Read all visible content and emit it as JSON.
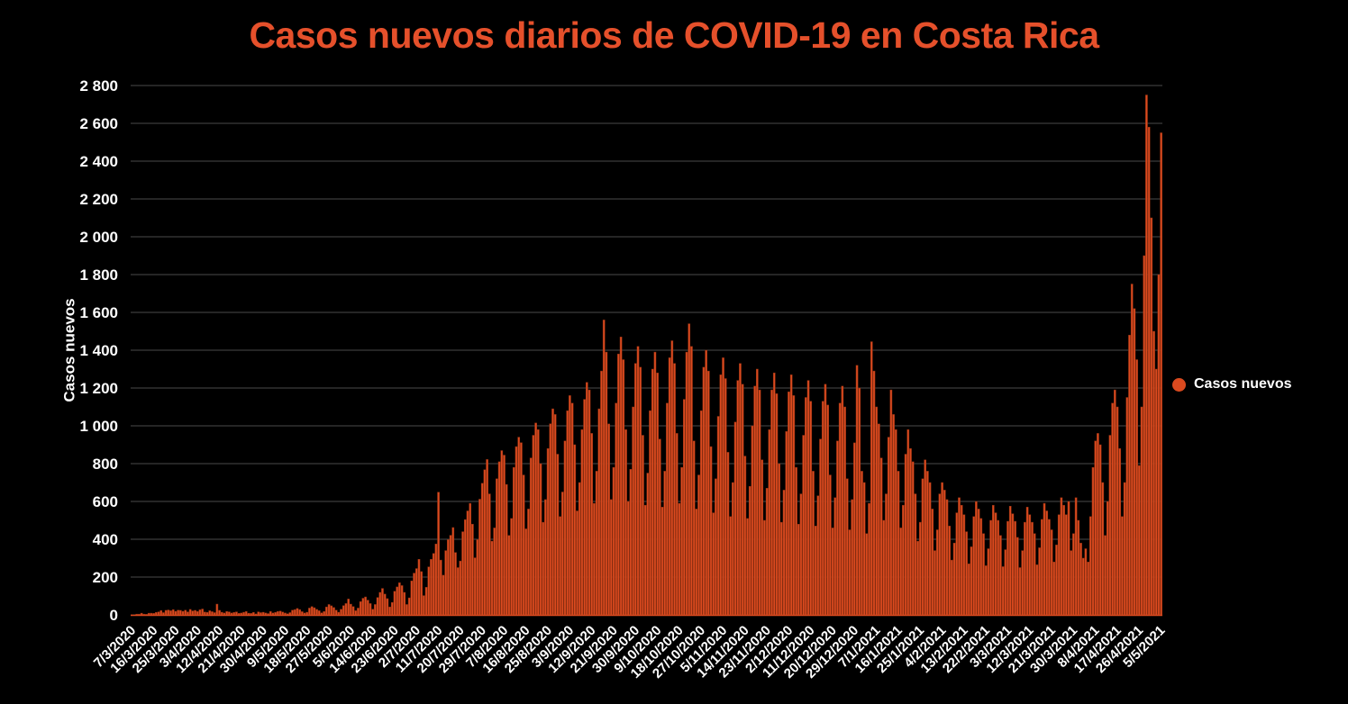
{
  "title": "Casos nuevos diarios de COVID-19 en Costa Rica",
  "legend": {
    "label": "Casos nuevos"
  },
  "chart_data": {
    "type": "bar",
    "title": "Casos nuevos diarios de COVID-19 en Costa Rica",
    "xlabel": "",
    "ylabel": "Casos nuevos",
    "series_name": "Casos nuevos",
    "ylim": [
      0,
      2800
    ],
    "ytick_step": 200,
    "grid": true,
    "legend_position": "right-middle",
    "x_tick_every": 9,
    "colors": {
      "background": "#000000",
      "bar": "#DB4A1F",
      "bar_edge": "#8E3012",
      "title": "#E5502B",
      "grid": "#4A4A4A",
      "text": "#FFFFFF"
    },
    "y_tick_labels": [
      "0",
      "200",
      "400",
      "600",
      "800",
      "1 000",
      "1 200",
      "1 400",
      "1 600",
      "1 800",
      "2 000",
      "2 200",
      "2 400",
      "2 600",
      "2 800"
    ],
    "x_tick_labels": [
      "7/3/2020",
      "16/3/2020",
      "25/3/2020",
      "3/4/2020",
      "12/4/2020",
      "21/4/2020",
      "30/4/2020",
      "9/5/2020",
      "18/5/2020",
      "27/5/2020",
      "5/6/2020",
      "14/6/2020",
      "23/6/2020",
      "2/7/2020",
      "11/7/2020",
      "20/7/2020",
      "29/7/2020",
      "7/8/2020",
      "16/8/2020",
      "25/8/2020",
      "3/9/2020",
      "12/9/2020",
      "21/9/2020",
      "30/9/2020",
      "9/10/2020",
      "18/10/2020",
      "27/10/2020",
      "5/11/2020",
      "14/11/2020",
      "23/11/2020",
      "2/12/2020",
      "11/12/2020",
      "20/12/2020",
      "29/12/2020",
      "7/1/2021",
      "16/1/2021",
      "25/1/2021",
      "4/2/2021",
      "13/2/2021",
      "22/2/2021",
      "3/3/2021",
      "12/3/2021",
      "21/3/2021",
      "30/3/2021",
      "8/4/2021",
      "17/4/2021",
      "26/4/2021",
      "5/5/2021"
    ],
    "values": [
      1,
      0,
      4,
      4,
      9,
      4,
      3,
      9,
      9,
      8,
      13,
      16,
      23,
      12,
      24,
      26,
      22,
      28,
      19,
      25,
      24,
      19,
      25,
      16,
      29,
      21,
      24,
      18,
      27,
      31,
      15,
      13,
      22,
      17,
      12,
      57,
      24,
      14,
      10,
      18,
      16,
      10,
      13,
      16,
      8,
      10,
      14,
      18,
      9,
      8,
      13,
      5,
      16,
      12,
      14,
      10,
      7,
      18,
      10,
      13,
      18,
      20,
      15,
      10,
      6,
      12,
      25,
      28,
      34,
      28,
      17,
      10,
      14,
      36,
      44,
      38,
      29,
      22,
      11,
      18,
      42,
      55,
      48,
      39,
      25,
      14,
      30,
      49,
      60,
      84,
      57,
      44,
      22,
      36,
      70,
      88,
      95,
      78,
      60,
      30,
      55,
      92,
      119,
      140,
      110,
      86,
      42,
      66,
      125,
      148,
      170,
      155,
      119,
      55,
      90,
      180,
      221,
      245,
      294,
      229,
      102,
      146,
      254,
      294,
      325,
      375,
      649,
      290,
      210,
      340,
      398,
      421,
      462,
      330,
      250,
      285,
      440,
      504,
      550,
      590,
      480,
      302,
      398,
      612,
      696,
      768,
      822,
      640,
      390,
      460,
      720,
      810,
      869,
      845,
      690,
      420,
      510,
      780,
      890,
      940,
      911,
      740,
      455,
      560,
      830,
      950,
      1015,
      980,
      800,
      490,
      610,
      880,
      1011,
      1090,
      1060,
      850,
      520,
      650,
      920,
      1080,
      1160,
      1120,
      900,
      550,
      700,
      980,
      1140,
      1230,
      1190,
      960,
      590,
      760,
      1090,
      1290,
      1560,
      1390,
      1010,
      610,
      780,
      1120,
      1380,
      1470,
      1350,
      980,
      600,
      770,
      1100,
      1330,
      1420,
      1310,
      950,
      580,
      750,
      1080,
      1300,
      1390,
      1280,
      930,
      570,
      760,
      1120,
      1360,
      1450,
      1330,
      960,
      590,
      780,
      1140,
      1390,
      1540,
      1420,
      920,
      560,
      740,
      1080,
      1310,
      1400,
      1290,
      890,
      540,
      720,
      1050,
      1270,
      1360,
      1250,
      860,
      520,
      700,
      1020,
      1240,
      1330,
      1220,
      840,
      510,
      680,
      1000,
      1210,
      1300,
      1190,
      820,
      500,
      670,
      980,
      1190,
      1280,
      1170,
      800,
      490,
      660,
      970,
      1180,
      1270,
      1160,
      780,
      480,
      640,
      950,
      1150,
      1240,
      1130,
      760,
      470,
      630,
      930,
      1130,
      1220,
      1110,
      740,
      460,
      620,
      920,
      1120,
      1210,
      1100,
      720,
      450,
      610,
      910,
      1320,
      1200,
      760,
      700,
      430,
      590,
      1445,
      1290,
      1100,
      1010,
      830,
      500,
      640,
      940,
      1190,
      1060,
      980,
      760,
      460,
      580,
      850,
      980,
      880,
      810,
      640,
      390,
      490,
      720,
      820,
      760,
      700,
      560,
      340,
      450,
      640,
      700,
      660,
      610,
      470,
      290,
      380,
      540,
      620,
      580,
      530,
      440,
      270,
      360,
      520,
      600,
      560,
      510,
      430,
      260,
      350,
      500,
      580,
      540,
      500,
      420,
      255,
      345,
      495,
      575,
      535,
      495,
      410,
      250,
      340,
      490,
      570,
      530,
      490,
      430,
      265,
      355,
      505,
      590,
      550,
      505,
      450,
      280,
      370,
      530,
      620,
      580,
      530,
      600,
      340,
      430,
      620,
      500,
      380,
      300,
      350,
      280,
      520,
      780,
      920,
      960,
      900,
      700,
      420,
      600,
      950,
      1120,
      1190,
      1100,
      880,
      520,
      700,
      1150,
      1480,
      1750,
      1620,
      1350,
      790,
      1100,
      1900,
      2750,
      2580,
      2100,
      1500,
      1300,
      1800,
      2550
    ]
  }
}
